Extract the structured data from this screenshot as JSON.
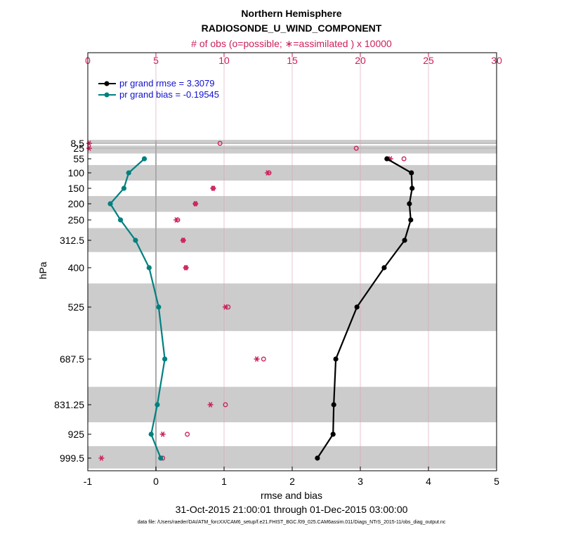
{
  "colors": {
    "rmse": "#000000",
    "bias": "#008080",
    "obs": "#cc1f5a",
    "legend_text": "#1010d0",
    "band": "#cccccc",
    "grid_top": "#d9a0b6",
    "zero_line": "#aaaaaa"
  },
  "chart_data": {
    "type": "line",
    "title": "Northern Hemisphere",
    "subtitle": "RADIOSONDE_U_WIND_COMPONENT",
    "top_axis_label": "# of obs (o=possible; ∗=assimilated ) x 10000",
    "xlabel": "rmse and bias",
    "ylabel": "hPa",
    "date_range": "31-Oct-2015 21:00:01 through 01-Dec-2015 03:00:00",
    "footnote": "data file: /Users/raeder/DAI/ATM_forcXX/CAM6_setup/f.e21.FHIST_BGC.f09_025.CAM6assim.011/Diags_NTrS_2015-11/obs_diag_output.nc",
    "xlim": [
      -1,
      5
    ],
    "x_ticks": [
      "-1",
      "0",
      "1",
      "2",
      "3",
      "4",
      "5"
    ],
    "x_tick_values": [
      -1,
      0,
      1,
      2,
      3,
      4,
      5
    ],
    "top_xlim": [
      0,
      30
    ],
    "top_ticks": [
      "0",
      "5",
      "10",
      "15",
      "20",
      "25",
      "30"
    ],
    "top_tick_values": [
      0,
      5,
      10,
      15,
      20,
      25,
      30
    ],
    "y_ticks": [
      "8.5",
      "25",
      "55",
      "100",
      "150",
      "200",
      "250",
      "312.5",
      "400",
      "525",
      "687.5",
      "831.25",
      "925",
      "999.5"
    ],
    "levels": [
      8.5,
      25,
      55,
      100,
      150,
      200,
      250,
      312.5,
      400,
      525,
      687.5,
      831.25,
      925,
      999.5
    ],
    "legend": [
      "pr grand rmse = 3.3079",
      "pr grand bias = -0.19545"
    ],
    "series": [
      {
        "name": "pr grand rmse = 3.3079",
        "levels": [
          55,
          100,
          150,
          200,
          250,
          312.5,
          400,
          525,
          687.5,
          831.25,
          925,
          999.5
        ],
        "values": [
          3.39,
          3.75,
          3.76,
          3.72,
          3.74,
          3.65,
          3.35,
          2.95,
          2.64,
          2.61,
          2.6,
          2.37
        ]
      },
      {
        "name": "pr grand bias = -0.19545",
        "levels": [
          55,
          100,
          150,
          200,
          250,
          312.5,
          400,
          525,
          687.5,
          831.25,
          925,
          999.5
        ],
        "values": [
          -0.17,
          -0.4,
          -0.47,
          -0.67,
          -0.52,
          -0.3,
          -0.1,
          0.04,
          0.13,
          0.02,
          -0.07,
          0.07
        ]
      }
    ],
    "obs_possible": {
      "levels": [
        8.5,
        25,
        55,
        100,
        150,
        200,
        250,
        312.5,
        400,
        525,
        687.5,
        831.25,
        925,
        999.5
      ],
      "values": [
        9.7,
        19.7,
        23.2,
        13.3,
        9.2,
        7.9,
        6.6,
        7.0,
        7.2,
        10.3,
        12.9,
        10.1,
        7.3,
        5.5
      ]
    },
    "obs_assimilated": {
      "levels": [
        8.5,
        25,
        55,
        100,
        150,
        200,
        250,
        312.5,
        400,
        525,
        687.5,
        831.25,
        925,
        999.5
      ],
      "values": [
        0.1,
        0.1,
        22.2,
        13.2,
        9.2,
        7.9,
        6.5,
        7.0,
        7.2,
        10.1,
        12.4,
        9.0,
        5.5,
        1.0
      ]
    },
    "shaded_bands": [
      [
        6,
        11
      ],
      [
        16,
        40
      ],
      [
        75,
        125
      ],
      [
        175,
        225
      ],
      [
        275,
        350
      ],
      [
        450,
        600
      ],
      [
        775,
        887
      ],
      [
        962,
        1037
      ]
    ]
  }
}
